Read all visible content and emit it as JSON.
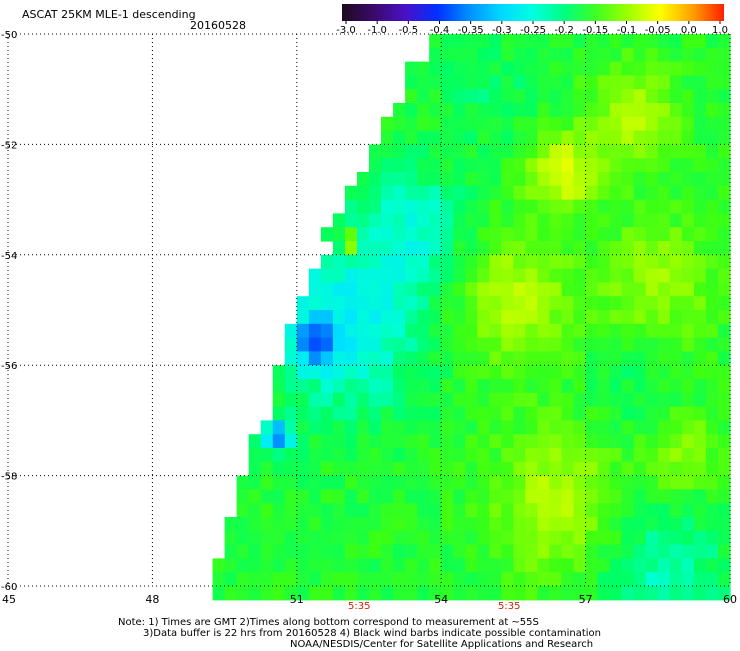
{
  "header": {
    "title": "ASCAT 25KM MLE-1 descending",
    "date": "20160528"
  },
  "colorbar": {
    "tick_labels": [
      "-3.0",
      "-1.0",
      "-0.5",
      "-0.4",
      "-0.35",
      "-0.3",
      "-0.25",
      "-0.2",
      "-0.15",
      "-0.1",
      "-0.05",
      "0.0",
      "1.0"
    ],
    "colors": [
      "#1e0a1e",
      "#3a0a6a",
      "#4a10c8",
      "#0030ff",
      "#0090ff",
      "#00d8ff",
      "#00ffe0",
      "#00ff80",
      "#40ff20",
      "#a0ff00",
      "#ffff00",
      "#ffa000",
      "#ff2000"
    ]
  },
  "chart_data": {
    "type": "heatmap",
    "xlim": [
      45,
      60
    ],
    "ylim": [
      -60,
      -50
    ],
    "x_ticks": [
      "45",
      "48",
      "51",
      "54",
      "57",
      "60"
    ],
    "y_ticks": [
      "-50",
      "-52",
      "-54",
      "-56",
      "-58",
      "-60"
    ],
    "grid": true,
    "swath_left_edge": [
      {
        "lat": -50.0,
        "lon": 53.8
      },
      {
        "lat": -51.0,
        "lon": 53.2
      },
      {
        "lat": -52.0,
        "lon": 52.6
      },
      {
        "lat": -53.0,
        "lon": 52.0
      },
      {
        "lat": -54.0,
        "lon": 51.5
      },
      {
        "lat": -55.0,
        "lon": 51.0
      },
      {
        "lat": -56.0,
        "lon": 50.6
      },
      {
        "lat": -57.0,
        "lon": 50.3
      },
      {
        "lat": -58.0,
        "lon": 50.0
      },
      {
        "lat": -59.0,
        "lon": 49.6
      },
      {
        "lat": -60.0,
        "lon": 49.2
      }
    ],
    "value_features": [
      {
        "lat": -51.5,
        "lon": 58.0,
        "value": -0.08,
        "radius": 0.9
      },
      {
        "lat": -52.5,
        "lon": 56.5,
        "value": -0.05,
        "radius": 0.7
      },
      {
        "lat": -54.8,
        "lon": 55.5,
        "value": -0.08,
        "radius": 1.2
      },
      {
        "lat": -54.5,
        "lon": 58.5,
        "value": -0.1,
        "radius": 1.2
      },
      {
        "lat": -58.5,
        "lon": 56.5,
        "value": -0.08,
        "radius": 1.4
      },
      {
        "lat": -57.6,
        "lon": 59.0,
        "value": -0.1,
        "radius": 0.8
      },
      {
        "lat": -55.2,
        "lon": 52.0,
        "value": -0.28,
        "radius": 1.6
      },
      {
        "lat": -53.5,
        "lon": 53.5,
        "value": -0.24,
        "radius": 1.1
      },
      {
        "lat": -51.0,
        "lon": 55.0,
        "value": -0.2,
        "radius": 1.0
      },
      {
        "lat": -59.7,
        "lon": 58.5,
        "value": -0.24,
        "radius": 1.4
      },
      {
        "lat": -56.5,
        "lon": 58.0,
        "value": -0.2,
        "radius": 1.0
      },
      {
        "lat": -55.6,
        "lon": 51.4,
        "value": -0.35,
        "radius": 0.4
      },
      {
        "lat": -57.3,
        "lon": 50.6,
        "value": -0.35,
        "radius": 0.3
      },
      {
        "lat": -53.8,
        "lon": 52.1,
        "value": 0.0,
        "radius": 0.2
      }
    ],
    "base_value": -0.17
  },
  "time_labels": [
    "5:35",
    "5:35"
  ],
  "notes": [
    "Note: 1) Times are GMT 2)Times along bottom correspond to measurement at ~55S",
    "3)Data buffer is 22 hrs from 20160528 4) Black wind barbs indicate possible contamination",
    "NOAA/NESDIS/Center for Satellite Applications and Research"
  ]
}
